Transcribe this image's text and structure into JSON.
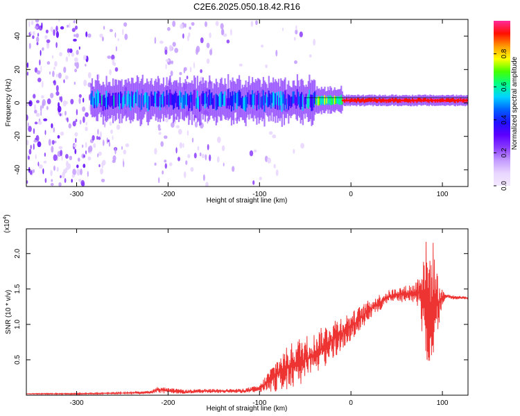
{
  "title": "C2E6.2025.050.18.42.R16",
  "colors": {
    "snr_line": "#ee3333",
    "spectrogram_colormap": [
      "#ffffff",
      "#e8d6ff",
      "#c39bff",
      "#8a3cff",
      "#5c00ff",
      "#1f10ff",
      "#0060ff",
      "#00d2ff",
      "#00ff8c",
      "#44ff00",
      "#ffff00",
      "#ff9900",
      "#ff1000",
      "#ff2a9a"
    ]
  },
  "chart_data": [
    {
      "type": "heatmap",
      "name": "spectrogram",
      "xlabel": "Height of straight line (km)",
      "ylabel": "Frequency (Hz)",
      "xlim": [
        -355,
        128
      ],
      "ylim": [
        -50,
        50
      ],
      "x_ticks": [
        -300,
        -200,
        -100,
        0,
        100
      ],
      "x_tick_labels": [
        "-300",
        "-200",
        "-100",
        "0",
        "100"
      ],
      "y_ticks": [
        -40,
        -20,
        0,
        20,
        40
      ],
      "y_tick_labels": [
        "-40",
        "-20",
        "0",
        "20",
        "40"
      ],
      "colorbar": {
        "label": "Normalized spectral amplitude",
        "range": [
          0,
          1
        ],
        "ticks": [
          0.0,
          0.2,
          0.4,
          0.6,
          0.8
        ],
        "tick_labels": [
          "0.0",
          "0.2",
          "0.4",
          "0.6",
          "0.8"
        ]
      },
      "features": {
        "carrier_band": {
          "x_start": -285,
          "x_end": 128,
          "frequency_hz": 1.5
        },
        "noise_region_x": [
          -355,
          -150
        ],
        "gap_region_x": [
          -245,
          -215
        ]
      }
    },
    {
      "type": "line",
      "name": "snr",
      "xlabel": "Height of straight line (km)",
      "ylabel": "SNR (10 * v/v)",
      "scale_label": "(x10",
      "scale_exponent": "4",
      "xlim": [
        -355,
        128
      ],
      "ylim": [
        0,
        2.35
      ],
      "x_ticks": [
        -300,
        -200,
        -100,
        0,
        100
      ],
      "x_tick_labels": [
        "-300",
        "-200",
        "-100",
        "0",
        "100"
      ],
      "y_ticks": [
        0.5,
        1.0,
        1.5,
        2.0
      ],
      "y_tick_labels": [
        "0.5",
        "1.0",
        "1.5",
        "2.0"
      ],
      "series": [
        {
          "x": [
            -355,
            -300,
            -250,
            -220,
            -210,
            -200,
            -180,
            -150,
            -120,
            -100,
            -90,
            -80,
            -70,
            -60,
            -50,
            -40,
            -30,
            -20,
            -10,
            0,
            10,
            20,
            30,
            40,
            50,
            60,
            70,
            75,
            80,
            85,
            90,
            95,
            100,
            105,
            110,
            120,
            128
          ],
          "y": [
            0.02,
            0.02,
            0.03,
            0.04,
            0.08,
            0.06,
            0.05,
            0.06,
            0.06,
            0.09,
            0.2,
            0.3,
            0.38,
            0.45,
            0.5,
            0.58,
            0.68,
            0.78,
            0.88,
            0.97,
            1.08,
            1.2,
            1.3,
            1.38,
            1.42,
            1.43,
            1.44,
            1.45,
            1.42,
            1.2,
            1.38,
            1.3,
            1.38,
            1.4,
            1.38,
            1.38,
            1.37
          ],
          "noise_amplitude": [
            0.005,
            0.008,
            0.01,
            0.02,
            0.05,
            0.04,
            0.03,
            0.03,
            0.03,
            0.05,
            0.15,
            0.25,
            0.3,
            0.35,
            0.35,
            0.3,
            0.3,
            0.3,
            0.25,
            0.2,
            0.18,
            0.15,
            0.12,
            0.1,
            0.1,
            0.12,
            0.15,
            0.3,
            0.85,
            0.9,
            0.8,
            0.4,
            0.1,
            0.04,
            0.03,
            0.02,
            0.02
          ]
        }
      ]
    }
  ]
}
